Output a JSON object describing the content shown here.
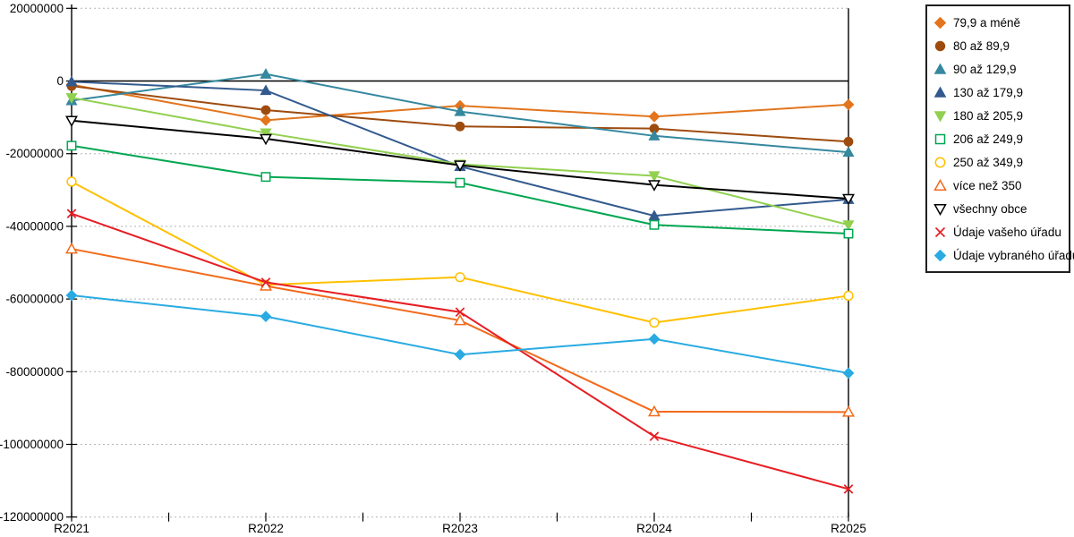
{
  "chart_data": {
    "type": "line",
    "title": "",
    "xlabel": "",
    "ylabel": "",
    "categories": [
      "R2021",
      "R2022",
      "R2023",
      "R2024",
      "R2025"
    ],
    "ylim": [
      -120000000,
      20000000
    ],
    "ytick_step": 20000000,
    "ytick_labels": [
      "20000000",
      "0",
      "-20000000",
      "-40000000",
      "-60000000",
      "-80000000",
      "-100000000",
      "-120000000"
    ],
    "grid": "dotted-horizontal",
    "legend_position": "right",
    "colors": {
      "axis": "#000000",
      "gridline": "#b3b3b3",
      "legend_border": "#1f1f1f",
      "background": "#ffffff"
    },
    "series": [
      {
        "name": "79,9 a méně",
        "color": "#E2751D",
        "marker": "diamond",
        "fill": "solid",
        "values": [
          -1000000,
          -10800000,
          -6800000,
          -9800000,
          -6500000
        ]
      },
      {
        "name": "80 až 89,9",
        "color": "#9E4B0E",
        "marker": "circle",
        "fill": "solid",
        "values": [
          -1400000,
          -8000000,
          -12500000,
          -13100000,
          -16700000
        ]
      },
      {
        "name": "90 až 129,9",
        "color": "#35889E",
        "marker": "triangle-up",
        "fill": "solid",
        "values": [
          -5400000,
          1900000,
          -8400000,
          -15100000,
          -19600000
        ]
      },
      {
        "name": "130 až 179,9",
        "color": "#335A8E",
        "marker": "triangle-up",
        "fill": "solid",
        "values": [
          -200000,
          -2600000,
          -23500000,
          -37100000,
          -32600000
        ]
      },
      {
        "name": "180 až 205,9",
        "color": "#92D050",
        "marker": "triangle-down",
        "fill": "solid",
        "values": [
          -4600000,
          -14300000,
          -22900000,
          -26100000,
          -39600000
        ]
      },
      {
        "name": "206 až 249,9",
        "color": "#00A651",
        "marker": "square",
        "fill": "open",
        "values": [
          -17800000,
          -26400000,
          -28000000,
          -39600000,
          -42000000
        ]
      },
      {
        "name": "250 až 349,9",
        "color": "#FFC000",
        "marker": "circle",
        "fill": "open",
        "values": [
          -27700000,
          -56100000,
          -54000000,
          -66500000,
          -59100000
        ]
      },
      {
        "name": "více než 350",
        "color": "#F26A1B",
        "marker": "triangle-up",
        "fill": "open",
        "values": [
          -46200000,
          -56400000,
          -65900000,
          -91000000,
          -91100000
        ]
      },
      {
        "name": "všechny obce",
        "color": "#000000",
        "marker": "triangle-down",
        "fill": "open",
        "values": [
          -10900000,
          -15900000,
          -23200000,
          -28600000,
          -32400000
        ]
      },
      {
        "name": "Údaje vašeho úřadu",
        "color": "#E71D23",
        "marker": "x",
        "fill": "line",
        "values": [
          -36500000,
          -55400000,
          -63600000,
          -97800000,
          -112300000
        ]
      },
      {
        "name": "Údaje vybraného úřadu",
        "color": "#29ABE2",
        "marker": "diamond",
        "fill": "solid",
        "values": [
          -59000000,
          -64800000,
          -75300000,
          -71000000,
          -80400000
        ]
      }
    ]
  }
}
